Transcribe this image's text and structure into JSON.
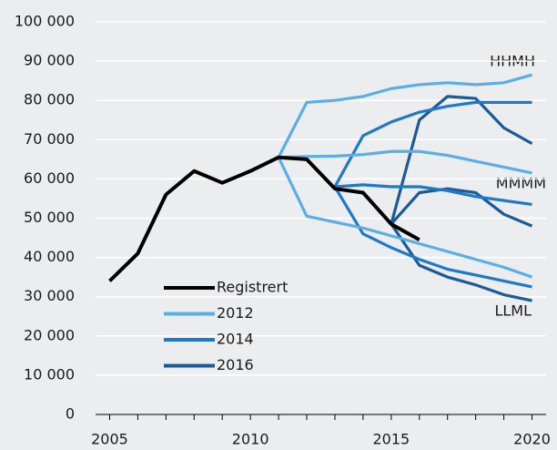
{
  "chart_data": {
    "type": "line",
    "x": [
      2005,
      2006,
      2007,
      2008,
      2009,
      2010,
      2011,
      2012,
      2013,
      2014,
      2015,
      2016,
      2017,
      2018,
      2019,
      2020
    ],
    "xlim": [
      2004.5,
      2020.5
    ],
    "xticks": [
      2005,
      2010,
      2015,
      2020
    ],
    "ylim": [
      0,
      100000
    ],
    "yticks": [
      0,
      {
        "value": 10000,
        "label": "10 000"
      },
      {
        "value": 20000,
        "label": "20 000"
      },
      {
        "value": 30000,
        "label": "30 000"
      },
      {
        "value": 40000,
        "label": "40 000"
      },
      {
        "value": 50000,
        "label": "50 000"
      },
      {
        "value": 60000,
        "label": "60 000"
      },
      {
        "value": 70000,
        "label": "70 000"
      },
      {
        "value": 80000,
        "label": "80 000"
      },
      {
        "value": 90000,
        "label": "90 000"
      },
      {
        "value": 100000,
        "label": "100 000"
      }
    ],
    "grid": true,
    "series": [
      {
        "name": "Registrert",
        "color": "#000000",
        "lines": [
          [
            34000,
            41000,
            56000,
            62000,
            59000,
            62000,
            65500,
            65000,
            57500,
            56500,
            48500,
            44500,
            null,
            null,
            null,
            null
          ]
        ]
      },
      {
        "name": "2012",
        "color": "#5aaee8",
        "lines": [
          [
            null,
            null,
            null,
            null,
            null,
            null,
            65500,
            79500,
            80000,
            81000,
            83000,
            84000,
            84500,
            84000,
            84500,
            86500
          ],
          [
            null,
            null,
            null,
            null,
            null,
            null,
            65500,
            65700,
            65800,
            66200,
            67000,
            67000,
            66000,
            64500,
            63000,
            61500
          ],
          [
            null,
            null,
            null,
            null,
            null,
            null,
            65500,
            50500,
            49000,
            47500,
            45500,
            43500,
            41500,
            39500,
            37500,
            35000
          ]
        ]
      },
      {
        "name": "2014",
        "color": "#1f78c8",
        "lines": [
          [
            null,
            null,
            null,
            null,
            null,
            null,
            null,
            null,
            58000,
            71000,
            74500,
            77000,
            78500,
            79500,
            79500,
            79500
          ],
          [
            null,
            null,
            null,
            null,
            null,
            null,
            null,
            null,
            58000,
            58500,
            58000,
            58000,
            57000,
            55500,
            54500,
            53500
          ],
          [
            null,
            null,
            null,
            null,
            null,
            null,
            null,
            null,
            58000,
            46000,
            42500,
            39500,
            37000,
            35500,
            34000,
            32500
          ]
        ]
      },
      {
        "name": "2016",
        "color": "#1a5a96",
        "lines": [
          [
            null,
            null,
            null,
            null,
            null,
            null,
            null,
            null,
            null,
            null,
            48500,
            75000,
            81000,
            80500,
            73000,
            69000
          ],
          [
            null,
            null,
            null,
            null,
            null,
            null,
            null,
            null,
            null,
            null,
            48500,
            56500,
            57500,
            56500,
            51000,
            48000
          ],
          [
            null,
            null,
            null,
            null,
            null,
            null,
            null,
            null,
            null,
            null,
            48500,
            38000,
            35000,
            33000,
            30500,
            29000
          ]
        ]
      }
    ],
    "annotations": [
      "HHMH",
      "MMMM",
      "LLML"
    ]
  }
}
